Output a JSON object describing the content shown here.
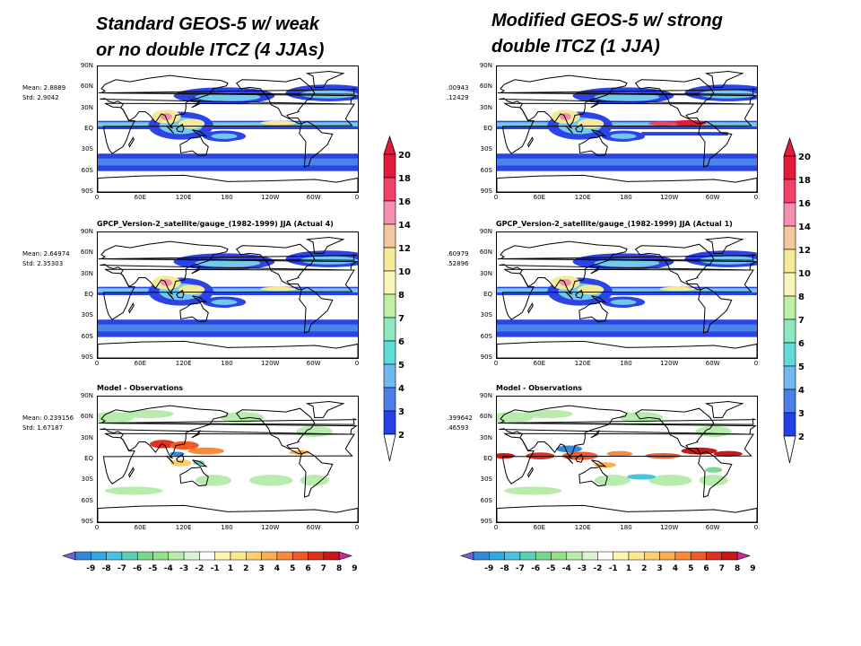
{
  "titles": {
    "left": [
      "Standard GEOS-5 w/ weak",
      "or no double ITCZ (4 JJAs)"
    ],
    "right": [
      "Modified GEOS-5 w/ strong",
      "double ITCZ (1 JJA)"
    ]
  },
  "latitude_labels": [
    "90N",
    "60N",
    "30N",
    "EQ",
    "30S",
    "60S",
    "90S"
  ],
  "longitude_labels": [
    "0",
    "60E",
    "120E",
    "180",
    "120W",
    "60W",
    "0"
  ],
  "left_panels": [
    {
      "name": "model",
      "title": "",
      "mean": "Mean: 2.8889",
      "std": "Std: 2.9042"
    },
    {
      "name": "obs",
      "title": "GPCP_Version-2_satellite/gauge_(1982-1999) JJA (Actual 4)",
      "mean": "Mean: 2.64974",
      "std": "Std: 2.35303"
    },
    {
      "name": "diff",
      "title": "Model  -  Observations",
      "mean": "Mean: 0.239156",
      "std": "Std: 1.67187"
    }
  ],
  "right_panels": [
    {
      "name": "model",
      "title": "",
      "mean": ".00943",
      "std": ".12429"
    },
    {
      "name": "obs",
      "title": "GPCP_Version-2_satellite/gauge_(1982-1999) JJA (Actual 1)",
      "mean": ".60979",
      "std": ".52896"
    },
    {
      "name": "diff",
      "title": "Model  -  Observations",
      "mean": ".399642",
      "std": ".46593"
    }
  ],
  "precip_colorbar": {
    "labels": [
      "20",
      "18",
      "16",
      "14",
      "12",
      "10",
      "8",
      "7",
      "6",
      "5",
      "4",
      "3",
      "2"
    ],
    "colors": [
      "#e31a3a",
      "#f2426a",
      "#f48fb0",
      "#f4c7a0",
      "#f4ea98",
      "#f8f6b8",
      "#bff0a8",
      "#8fe8c0",
      "#60dcd8",
      "#70b8ee",
      "#4c7fe8",
      "#2640e8",
      "#2010e0"
    ]
  },
  "diff_colorbar": {
    "labels": [
      "-9",
      "-8",
      "-7",
      "-6",
      "-5",
      "-4",
      "-3",
      "-2",
      "-1",
      "1",
      "2",
      "3",
      "4",
      "5",
      "6",
      "7",
      "8",
      "9"
    ],
    "colors": [
      "#6e64d0",
      "#3488dc",
      "#30a8e0",
      "#44c4e0",
      "#5ad0b4",
      "#78d890",
      "#96e08c",
      "#b8ecac",
      "#d8f4d0",
      "#ffffff",
      "#fff6b0",
      "#fde890",
      "#fcd070",
      "#fbb050",
      "#f88a3a",
      "#f05a28",
      "#e03020",
      "#c81818",
      "#c82aa0"
    ]
  }
}
